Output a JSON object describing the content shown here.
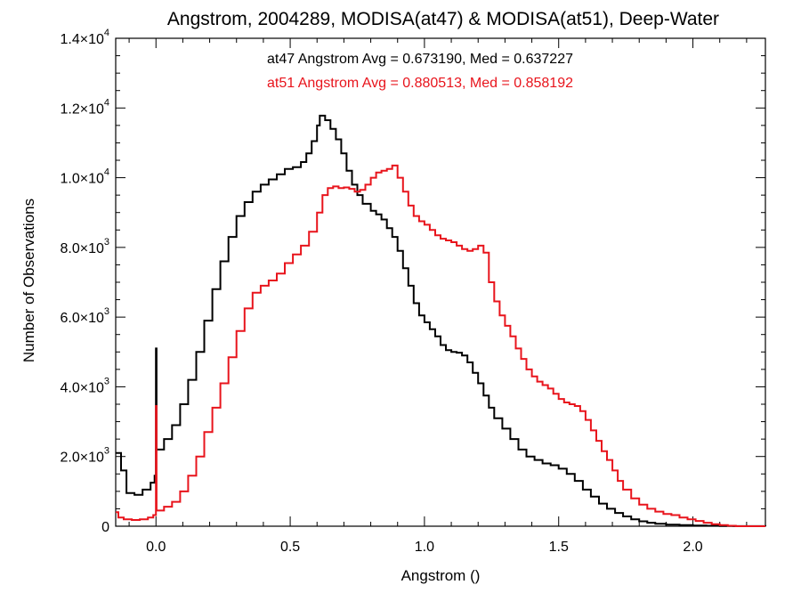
{
  "chart_data": {
    "type": "line",
    "title": "Angstrom, 2004289, MODISA(at47) & MODISA(at51), Deep-Water",
    "xlabel": "Angstrom ()",
    "ylabel": "Number of Observations",
    "xlim": [
      -0.15,
      2.27
    ],
    "ylim": [
      0,
      14000
    ],
    "x_ticks": [
      0.0,
      0.5,
      1.0,
      1.5,
      2.0
    ],
    "x_tick_labels": [
      "0.0",
      "0.5",
      "1.0",
      "1.5",
      "2.0"
    ],
    "y_ticks": [
      0,
      2000,
      4000,
      6000,
      8000,
      10000,
      12000,
      14000
    ],
    "y_tick_labels": [
      {
        "mant": "0",
        "exp": ""
      },
      {
        "mant": "2.0×10",
        "exp": "3"
      },
      {
        "mant": "4.0×10",
        "exp": "3"
      },
      {
        "mant": "6.0×10",
        "exp": "3"
      },
      {
        "mant": "8.0×10",
        "exp": "3"
      },
      {
        "mant": "1.0×10",
        "exp": "4"
      },
      {
        "mant": "1.2×10",
        "exp": "4"
      },
      {
        "mant": "1.4×10",
        "exp": "4"
      }
    ],
    "grid": false,
    "annotations": [
      {
        "text": "at47 Angstrom Avg = 0.673190, Med = 0.637227",
        "color": "#000000"
      },
      {
        "text": "at51 Angstrom Avg = 0.880513, Med = 0.858192",
        "color": "#e8141c"
      }
    ],
    "series": [
      {
        "color": "#000000",
        "style": "step",
        "points": [
          [
            -0.15,
            2100
          ],
          [
            -0.13,
            1600
          ],
          [
            -0.11,
            950
          ],
          [
            -0.08,
            900
          ],
          [
            -0.05,
            1050
          ],
          [
            -0.02,
            1250
          ],
          [
            -0.005,
            1450
          ],
          [
            0.0,
            5100
          ],
          [
            0.002,
            2200
          ],
          [
            0.03,
            2500
          ],
          [
            0.06,
            2900
          ],
          [
            0.09,
            3500
          ],
          [
            0.12,
            4200
          ],
          [
            0.15,
            5000
          ],
          [
            0.18,
            5900
          ],
          [
            0.21,
            6800
          ],
          [
            0.24,
            7600
          ],
          [
            0.27,
            8300
          ],
          [
            0.3,
            8900
          ],
          [
            0.33,
            9300
          ],
          [
            0.36,
            9600
          ],
          [
            0.39,
            9800
          ],
          [
            0.42,
            9950
          ],
          [
            0.45,
            10100
          ],
          [
            0.48,
            10250
          ],
          [
            0.51,
            10300
          ],
          [
            0.54,
            10450
          ],
          [
            0.56,
            10700
          ],
          [
            0.58,
            11050
          ],
          [
            0.6,
            11500
          ],
          [
            0.61,
            11780
          ],
          [
            0.63,
            11650
          ],
          [
            0.65,
            11400
          ],
          [
            0.67,
            11100
          ],
          [
            0.69,
            10700
          ],
          [
            0.71,
            10200
          ],
          [
            0.73,
            9800
          ],
          [
            0.75,
            9500
          ],
          [
            0.77,
            9250
          ],
          [
            0.8,
            9050
          ],
          [
            0.82,
            8950
          ],
          [
            0.84,
            8800
          ],
          [
            0.86,
            8550
          ],
          [
            0.88,
            8300
          ],
          [
            0.9,
            7900
          ],
          [
            0.92,
            7400
          ],
          [
            0.94,
            6900
          ],
          [
            0.96,
            6400
          ],
          [
            0.98,
            6050
          ],
          [
            1.0,
            5850
          ],
          [
            1.02,
            5650
          ],
          [
            1.04,
            5450
          ],
          [
            1.06,
            5200
          ],
          [
            1.08,
            5050
          ],
          [
            1.1,
            5000
          ],
          [
            1.12,
            4980
          ],
          [
            1.14,
            4900
          ],
          [
            1.16,
            4700
          ],
          [
            1.18,
            4400
          ],
          [
            1.2,
            4100
          ],
          [
            1.22,
            3750
          ],
          [
            1.24,
            3400
          ],
          [
            1.26,
            3100
          ],
          [
            1.29,
            2800
          ],
          [
            1.32,
            2500
          ],
          [
            1.35,
            2200
          ],
          [
            1.38,
            2000
          ],
          [
            1.41,
            1900
          ],
          [
            1.44,
            1800
          ],
          [
            1.47,
            1750
          ],
          [
            1.5,
            1650
          ],
          [
            1.53,
            1500
          ],
          [
            1.56,
            1300
          ],
          [
            1.59,
            1050
          ],
          [
            1.62,
            850
          ],
          [
            1.65,
            650
          ],
          [
            1.68,
            500
          ],
          [
            1.71,
            380
          ],
          [
            1.74,
            280
          ],
          [
            1.77,
            200
          ],
          [
            1.8,
            140
          ],
          [
            1.83,
            100
          ],
          [
            1.86,
            70
          ],
          [
            1.9,
            45
          ],
          [
            1.95,
            30
          ],
          [
            2.0,
            20
          ],
          [
            2.05,
            12
          ],
          [
            2.1,
            6
          ],
          [
            2.15,
            2
          ],
          [
            2.27,
            0
          ]
        ]
      },
      {
        "color": "#e8141c",
        "style": "step",
        "points": [
          [
            -0.15,
            400
          ],
          [
            -0.14,
            250
          ],
          [
            -0.12,
            200
          ],
          [
            -0.09,
            180
          ],
          [
            -0.06,
            200
          ],
          [
            -0.03,
            250
          ],
          [
            -0.01,
            320
          ],
          [
            0.0,
            3450
          ],
          [
            0.002,
            450
          ],
          [
            0.03,
            560
          ],
          [
            0.06,
            700
          ],
          [
            0.09,
            1000
          ],
          [
            0.12,
            1450
          ],
          [
            0.15,
            2000
          ],
          [
            0.18,
            2700
          ],
          [
            0.21,
            3400
          ],
          [
            0.24,
            4100
          ],
          [
            0.27,
            4850
          ],
          [
            0.3,
            5600
          ],
          [
            0.33,
            6250
          ],
          [
            0.36,
            6700
          ],
          [
            0.39,
            6900
          ],
          [
            0.42,
            7050
          ],
          [
            0.45,
            7250
          ],
          [
            0.48,
            7550
          ],
          [
            0.51,
            7800
          ],
          [
            0.54,
            8050
          ],
          [
            0.57,
            8450
          ],
          [
            0.6,
            9000
          ],
          [
            0.62,
            9500
          ],
          [
            0.64,
            9700
          ],
          [
            0.66,
            9750
          ],
          [
            0.68,
            9700
          ],
          [
            0.7,
            9720
          ],
          [
            0.72,
            9680
          ],
          [
            0.74,
            9600
          ],
          [
            0.76,
            9650
          ],
          [
            0.78,
            9800
          ],
          [
            0.8,
            10000
          ],
          [
            0.82,
            10150
          ],
          [
            0.84,
            10200
          ],
          [
            0.86,
            10250
          ],
          [
            0.88,
            10350
          ],
          [
            0.9,
            10000
          ],
          [
            0.92,
            9600
          ],
          [
            0.94,
            9200
          ],
          [
            0.96,
            8900
          ],
          [
            0.98,
            8750
          ],
          [
            1.0,
            8650
          ],
          [
            1.02,
            8500
          ],
          [
            1.04,
            8350
          ],
          [
            1.06,
            8250
          ],
          [
            1.08,
            8200
          ],
          [
            1.1,
            8150
          ],
          [
            1.12,
            8050
          ],
          [
            1.14,
            7950
          ],
          [
            1.16,
            7900
          ],
          [
            1.18,
            7950
          ],
          [
            1.2,
            8050
          ],
          [
            1.22,
            7850
          ],
          [
            1.24,
            7000
          ],
          [
            1.26,
            6450
          ],
          [
            1.28,
            6050
          ],
          [
            1.3,
            5750
          ],
          [
            1.32,
            5450
          ],
          [
            1.34,
            5100
          ],
          [
            1.36,
            4800
          ],
          [
            1.38,
            4500
          ],
          [
            1.4,
            4300
          ],
          [
            1.42,
            4150
          ],
          [
            1.44,
            4050
          ],
          [
            1.46,
            3950
          ],
          [
            1.48,
            3800
          ],
          [
            1.5,
            3650
          ],
          [
            1.52,
            3550
          ],
          [
            1.54,
            3500
          ],
          [
            1.56,
            3450
          ],
          [
            1.58,
            3300
          ],
          [
            1.6,
            3050
          ],
          [
            1.62,
            2750
          ],
          [
            1.64,
            2450
          ],
          [
            1.66,
            2150
          ],
          [
            1.68,
            1900
          ],
          [
            1.7,
            1600
          ],
          [
            1.72,
            1300
          ],
          [
            1.74,
            1050
          ],
          [
            1.77,
            800
          ],
          [
            1.8,
            620
          ],
          [
            1.83,
            500
          ],
          [
            1.86,
            420
          ],
          [
            1.89,
            350
          ],
          [
            1.92,
            320
          ],
          [
            1.95,
            250
          ],
          [
            1.98,
            200
          ],
          [
            2.01,
            150
          ],
          [
            2.04,
            100
          ],
          [
            2.07,
            60
          ],
          [
            2.1,
            30
          ],
          [
            2.13,
            12
          ],
          [
            2.16,
            0
          ],
          [
            2.27,
            0
          ]
        ]
      }
    ]
  }
}
